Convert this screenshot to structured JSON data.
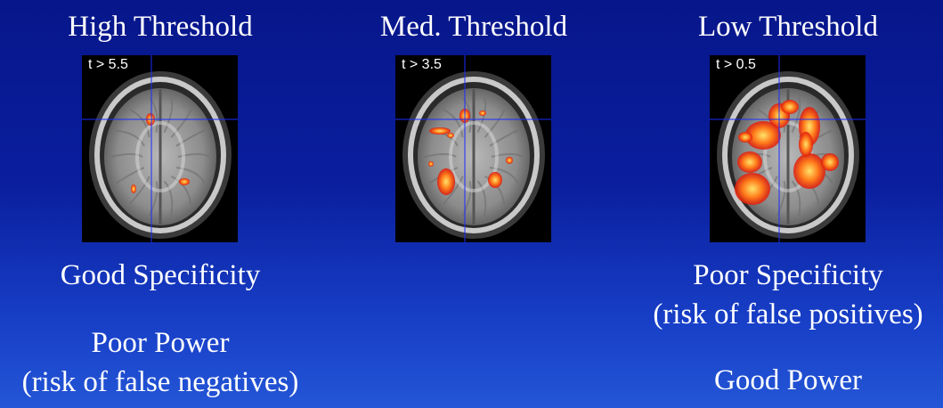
{
  "panels": [
    {
      "title": "High Threshold",
      "threshold_label": "t > 5.5",
      "threshold": 5.5,
      "captions": [
        "Good Specificity",
        "Poor Power",
        "(risk of false negatives)"
      ]
    },
    {
      "title": "Med. Threshold",
      "threshold_label": "t > 3.5",
      "threshold": 3.5,
      "captions": []
    },
    {
      "title": "Low Threshold",
      "threshold_label": "t > 0.5",
      "threshold": 0.5,
      "captions": [
        "Poor Specificity",
        "(risk of false positives)",
        "Good Power"
      ]
    }
  ],
  "colors": {
    "background_top": "#07168a",
    "background_bottom": "#2456d6",
    "crosshair": "#1a2cff",
    "activation_hot": "#ffe36a",
    "activation_warm": "#ff7a1a",
    "activation_cool": "#e0180a"
  }
}
